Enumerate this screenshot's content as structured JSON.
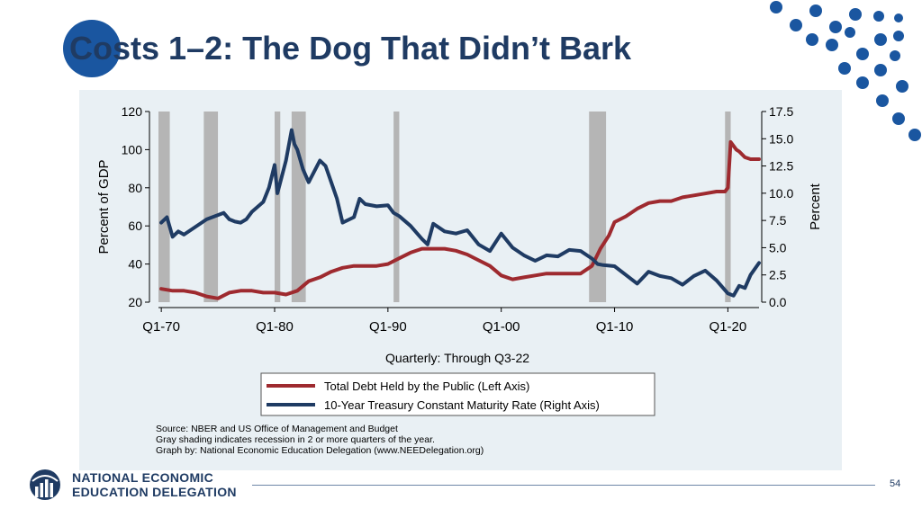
{
  "slide": {
    "title": "Costs 1–2: The Dog That Didn’t Bark",
    "page_number": "54",
    "accent_color": "#1f3b63",
    "circle_color": "#1a56a0"
  },
  "logo": {
    "line1": "NATIONAL ECONOMIC",
    "line2": "EDUCATION DELEGATION"
  },
  "chart_data": {
    "type": "line",
    "title": "",
    "xlabel": "Quarterly: Through Q3-22",
    "ylabel_left": "Percent of GDP",
    "ylabel_right": "Percent",
    "xlim": [
      1969.75,
      2022.75
    ],
    "ylim_left": [
      20,
      120
    ],
    "ylim_right": [
      0,
      17.5
    ],
    "x_ticks": [
      {
        "value": 1970,
        "label": "Q1-70"
      },
      {
        "value": 1980,
        "label": "Q1-80"
      },
      {
        "value": 1990,
        "label": "Q1-90"
      },
      {
        "value": 2000,
        "label": "Q1-00"
      },
      {
        "value": 2010,
        "label": "Q1-10"
      },
      {
        "value": 2020,
        "label": "Q1-20"
      }
    ],
    "y_ticks_left": [
      {
        "value": 20,
        "label": "20"
      },
      {
        "value": 40,
        "label": "40"
      },
      {
        "value": 60,
        "label": "60"
      },
      {
        "value": 80,
        "label": "80"
      },
      {
        "value": 100,
        "label": "100"
      },
      {
        "value": 120,
        "label": "120"
      }
    ],
    "y_ticks_right": [
      {
        "value": 0,
        "label": "0.0"
      },
      {
        "value": 2.5,
        "label": "2.5"
      },
      {
        "value": 5,
        "label": "5.0"
      },
      {
        "value": 7.5,
        "label": "7.5"
      },
      {
        "value": 10,
        "label": "10.0"
      },
      {
        "value": 12.5,
        "label": "12.5"
      },
      {
        "value": 15,
        "label": "15.0"
      },
      {
        "value": 17.5,
        "label": "17.5"
      }
    ],
    "recessions": [
      {
        "start": 1969.75,
        "end": 1970.75
      },
      {
        "start": 1973.75,
        "end": 1975.0
      },
      {
        "start": 1980.0,
        "end": 1980.5
      },
      {
        "start": 1981.5,
        "end": 1982.75
      },
      {
        "start": 1990.5,
        "end": 1991.0
      },
      {
        "start": 2007.75,
        "end": 2009.25
      },
      {
        "start": 2019.75,
        "end": 2020.25
      }
    ],
    "recession_color": "#b5b5b5",
    "series": [
      {
        "name": "Total Debt Held by the Public (Left Axis)",
        "axis": "left",
        "color": "#9e2a2f",
        "x": [
          1970,
          1971,
          1972,
          1973,
          1974,
          1975,
          1976,
          1977,
          1978,
          1979,
          1980,
          1981,
          1982,
          1983,
          1984,
          1985,
          1986,
          1987,
          1988,
          1989,
          1990,
          1991,
          1992,
          1993,
          1994,
          1995,
          1996,
          1997,
          1998,
          1999,
          2000,
          2001,
          2002,
          2003,
          2004,
          2005,
          2006,
          2007,
          2008,
          2008.75,
          2009.5,
          2010,
          2011,
          2012,
          2013,
          2014,
          2015,
          2016,
          2017,
          2018,
          2019,
          2019.75,
          2020.0,
          2020.25,
          2020.75,
          2021,
          2021.5,
          2022,
          2022.75
        ],
        "values": [
          27,
          26,
          26,
          25,
          23,
          22,
          25,
          26,
          26,
          25,
          25,
          24,
          26,
          31,
          33,
          36,
          38,
          39,
          39,
          39,
          40,
          43,
          46,
          48,
          48,
          48,
          47,
          45,
          42,
          39,
          34,
          32,
          33,
          34,
          35,
          35,
          35,
          35,
          39,
          48,
          55,
          62,
          65,
          69,
          72,
          73,
          73,
          75,
          76,
          77,
          78,
          78,
          80,
          104,
          100,
          99,
          96,
          95,
          95
        ]
      },
      {
        "name": "10-Year Treasury Constant Maturity Rate (Right Axis)",
        "axis": "right",
        "color": "#1f3b63",
        "x": [
          1970,
          1970.5,
          1971,
          1971.5,
          1972,
          1973,
          1974,
          1975,
          1975.5,
          1976,
          1976.5,
          1977,
          1977.5,
          1978,
          1979,
          1979.5,
          1980,
          1980.25,
          1980.5,
          1981,
          1981.5,
          1981.75,
          1982,
          1982.5,
          1983,
          1984,
          1984.5,
          1985,
          1985.5,
          1986,
          1987,
          1987.5,
          1988,
          1989,
          1990,
          1990.5,
          1991,
          1992,
          1993,
          1993.5,
          1994,
          1995,
          1996,
          1997,
          1998,
          1999,
          2000,
          2001,
          2002,
          2003,
          2004,
          2005,
          2006,
          2007,
          2008,
          2008.5,
          2009,
          2010,
          2011,
          2012,
          2013,
          2014,
          2015,
          2016,
          2017,
          2018,
          2019,
          2020,
          2020.5,
          2021,
          2021.5,
          2022,
          2022.75
        ],
        "values": [
          7.3,
          7.8,
          6.0,
          6.5,
          6.2,
          6.9,
          7.6,
          8.0,
          8.2,
          7.6,
          7.4,
          7.3,
          7.6,
          8.3,
          9.2,
          10.5,
          12.6,
          10.0,
          11.0,
          13.0,
          15.8,
          14.5,
          14.0,
          12.2,
          11.0,
          13.0,
          12.5,
          11.0,
          9.5,
          7.3,
          7.8,
          9.5,
          9.0,
          8.8,
          8.9,
          8.2,
          7.9,
          7.0,
          5.8,
          5.3,
          7.2,
          6.5,
          6.3,
          6.6,
          5.3,
          4.7,
          6.3,
          5.0,
          4.3,
          3.8,
          4.3,
          4.2,
          4.8,
          4.7,
          4.0,
          3.5,
          3.4,
          3.3,
          2.5,
          1.7,
          2.8,
          2.4,
          2.2,
          1.6,
          2.4,
          2.9,
          2.0,
          0.8,
          0.6,
          1.5,
          1.3,
          2.5,
          3.6
        ]
      }
    ]
  },
  "source_notes": {
    "line1": "Source: NBER and US Office of Management and Budget",
    "line2": "Gray shading indicates recession in 2 or more quarters of the year.",
    "line3": "Graph by: National Economic Education Delegation (www.NEEDelegation.org)"
  }
}
